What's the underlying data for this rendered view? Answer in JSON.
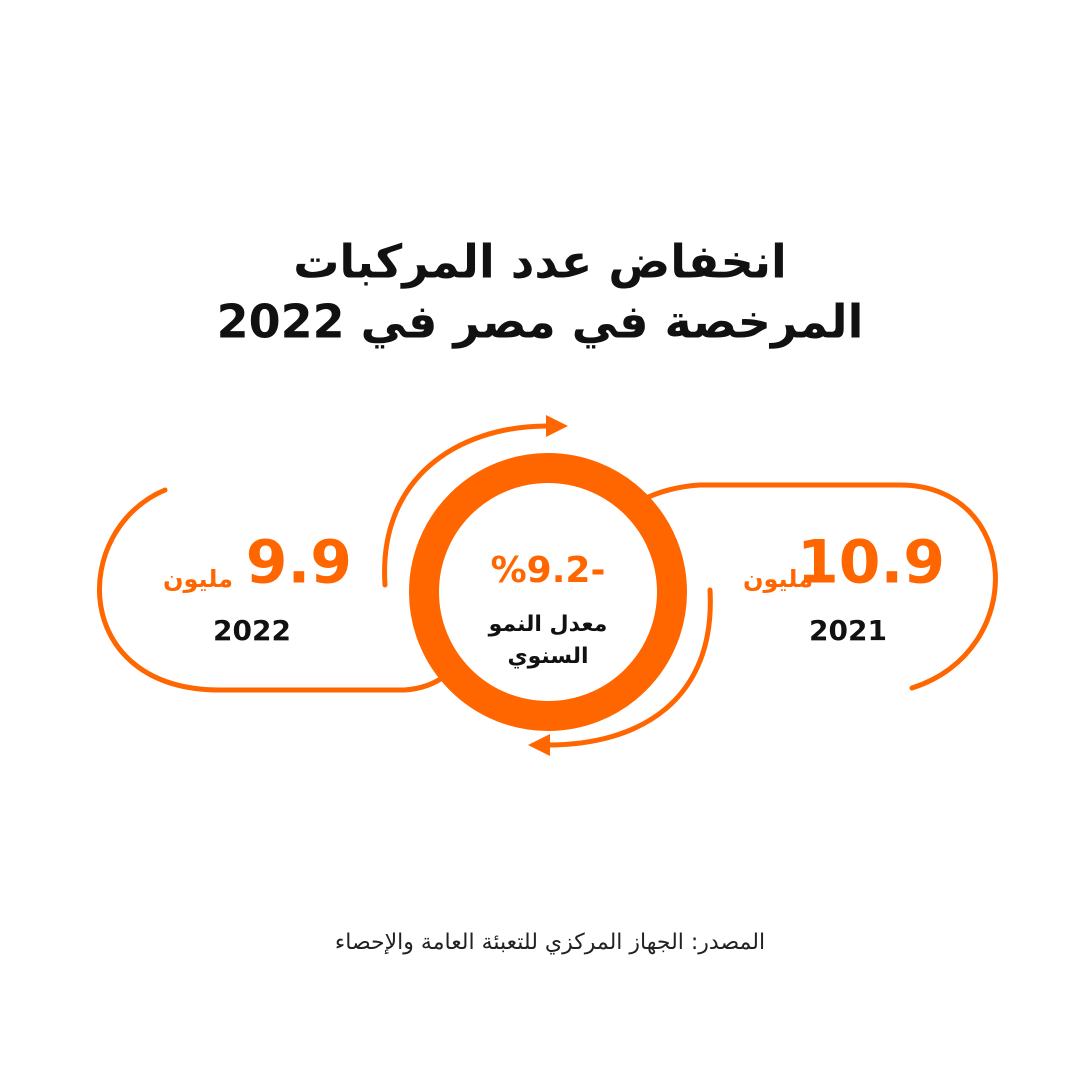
{
  "title": {
    "lines": [
      "انخفاض عدد المركبات",
      "المرخصة في مصر في 2022"
    ]
  },
  "items": [
    {
      "value": "10.9",
      "unit": "مليون",
      "year": "2021"
    },
    {
      "value": "9.9",
      "unit": "مليون",
      "year": "2022"
    }
  ],
  "center": {
    "value": "%9.2-",
    "label_lines": [
      "معدل النمو",
      "السنوي"
    ]
  },
  "source": "المصدر: الجهاز المركزي للتعبئة العامة والإحصاء"
}
